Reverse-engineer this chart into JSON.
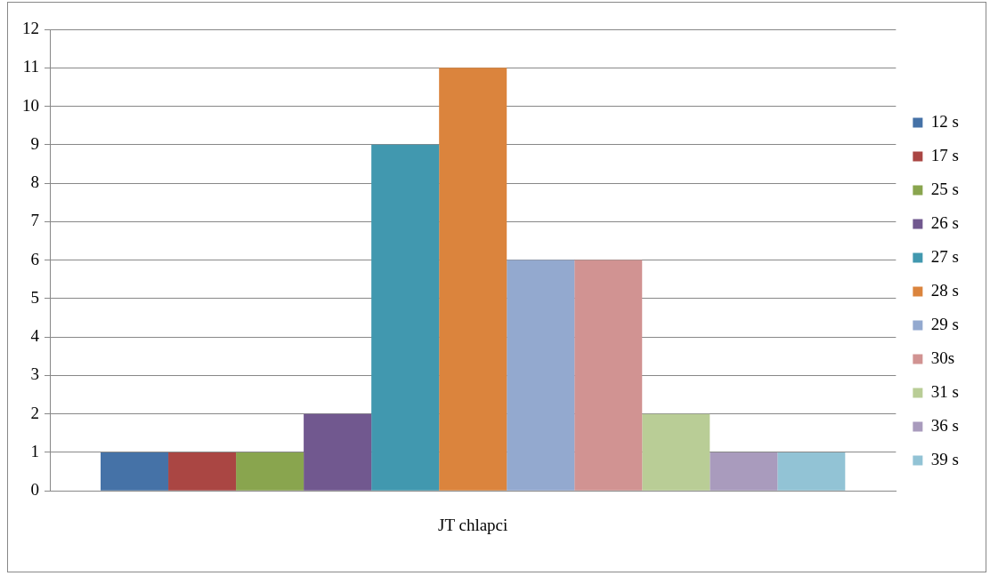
{
  "chart_data": {
    "type": "bar",
    "categories": [
      "JT chlapci"
    ],
    "series": [
      {
        "name": "12 s",
        "color": "#4572a7",
        "values": [
          1
        ]
      },
      {
        "name": "17 s",
        "color": "#aa4643",
        "values": [
          1
        ]
      },
      {
        "name": "25 s",
        "color": "#89a54e",
        "values": [
          1
        ]
      },
      {
        "name": "26 s",
        "color": "#71588f",
        "values": [
          2
        ]
      },
      {
        "name": "27 s",
        "color": "#4198af",
        "values": [
          9
        ]
      },
      {
        "name": "28 s",
        "color": "#db843d",
        "values": [
          11
        ]
      },
      {
        "name": "29 s",
        "color": "#93a9cf",
        "values": [
          6
        ]
      },
      {
        "name": "30s",
        "color": "#d19392",
        "values": [
          6
        ]
      },
      {
        "name": "31 s",
        "color": "#b9cd96",
        "values": [
          2
        ]
      },
      {
        "name": "36 s",
        "color": "#a99bbd",
        "values": [
          1
        ]
      },
      {
        "name": "39 s",
        "color": "#92c3d5",
        "values": [
          1
        ]
      }
    ],
    "ylim": [
      0,
      12
    ],
    "yticks": [
      0,
      1,
      2,
      3,
      4,
      5,
      6,
      7,
      8,
      9,
      10,
      11,
      12
    ],
    "grid": "y",
    "legend": "right"
  }
}
